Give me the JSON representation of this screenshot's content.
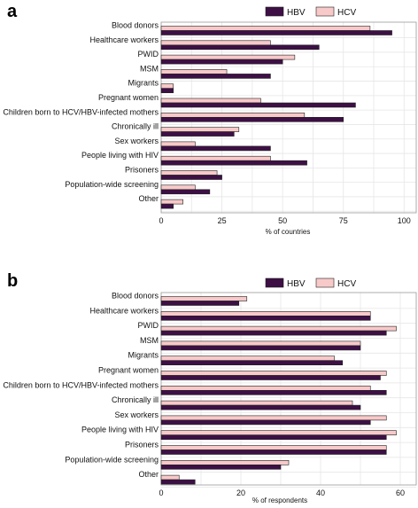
{
  "colors": {
    "hbv": "#3d0f45",
    "hcv": "#f7c9c8"
  },
  "chart_data": [
    {
      "type": "bar",
      "orientation": "horizontal",
      "panel_label": "a",
      "title": "",
      "xlabel": "% of countries",
      "ylabel": "",
      "xlim": [
        0,
        105
      ],
      "xticks": [
        0,
        25,
        50,
        75,
        100
      ],
      "grid": true,
      "legend_position": "top-right",
      "categories": [
        "Blood donors",
        "Healthcare workers",
        "PWID",
        "MSM",
        "Migrants",
        "Pregnant women",
        "Children born to HCV/HBV-infected mothers",
        "Chronically ill",
        "Sex workers",
        "People living with HIV",
        "Prisoners",
        "Population-wide screening",
        "Other"
      ],
      "series": [
        {
          "name": "HBV",
          "color": "#3d0f45",
          "values": [
            95,
            65,
            50,
            45,
            5,
            80,
            75,
            30,
            45,
            60,
            25,
            20,
            5
          ]
        },
        {
          "name": "HCV",
          "color": "#f7c9c8",
          "values": [
            86,
            45,
            55,
            27,
            5,
            41,
            59,
            32,
            14,
            45,
            23,
            14,
            9
          ]
        }
      ]
    },
    {
      "type": "bar",
      "orientation": "horizontal",
      "panel_label": "b",
      "title": "",
      "xlabel": "% of respondents",
      "ylabel": "",
      "xlim": [
        0,
        64
      ],
      "xticks": [
        0,
        20,
        40,
        60
      ],
      "grid": true,
      "legend_position": "top-right",
      "categories": [
        "Blood donors",
        "Healthcare workers",
        "PWID",
        "MSM",
        "Migrants",
        "Pregnant women",
        "Children born to HCV/HBV-infected mothers",
        "Chronically ill",
        "Sex workers",
        "People living with HIV",
        "Prisoners",
        "Population-wide screening",
        "Other"
      ],
      "series": [
        {
          "name": "HBV",
          "color": "#3d0f45",
          "values": [
            19.5,
            52.5,
            56.5,
            50,
            45.5,
            55,
            56.5,
            50,
            52.5,
            56.5,
            56.5,
            30,
            8.5
          ]
        },
        {
          "name": "HCV",
          "color": "#f7c9c8",
          "values": [
            21.5,
            52.5,
            59,
            50,
            43.5,
            56.5,
            52.5,
            48,
            56.5,
            59,
            56.5,
            32,
            4.5
          ]
        }
      ]
    }
  ]
}
